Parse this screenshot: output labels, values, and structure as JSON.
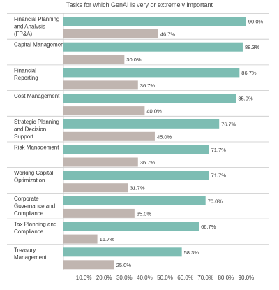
{
  "chart_data": {
    "type": "bar",
    "orientation": "horizontal",
    "title": "Tasks for which GenAI is very or extremely important",
    "categories": [
      "Financial Planning and Analysis (FP&A)",
      "Capital Management",
      "Financial Reporting",
      "Cost Management",
      "Strategic Planning and Decision Support",
      "Risk Management",
      "Working Capital Optimization",
      "Corporate Governance and Compliance",
      "Tax Planning and Compliance",
      "Treasury Management"
    ],
    "series": [
      {
        "color": "#7dbdb3",
        "values": [
          90.0,
          88.3,
          86.7,
          85.0,
          76.7,
          71.7,
          71.7,
          70.0,
          66.7,
          58.3
        ],
        "value_labels": [
          "90.0%",
          "88.3%",
          "86.7%",
          "85.0%",
          "76.7%",
          "71.7%",
          "71.7%",
          "70.0%",
          "66.7%",
          "58.3%"
        ]
      },
      {
        "color": "#c0b5b0",
        "values": [
          46.7,
          30.0,
          36.7,
          40.0,
          45.0,
          36.7,
          31.7,
          35.0,
          16.7,
          25.0
        ],
        "value_labels": [
          "46.7%",
          "30.0%",
          "36.7%",
          "40.0%",
          "45.0%",
          "36.7%",
          "31.7%",
          "35.0%",
          "16.7%",
          "25.0%"
        ]
      }
    ],
    "xlim": [
      0,
      100
    ],
    "x_ticks": [
      10,
      20,
      30,
      40,
      50,
      60,
      70,
      80,
      90
    ],
    "x_tick_labels": [
      "10.0%",
      "20.0%",
      "30.0%",
      "40.0%",
      "50.0%",
      "60.0%",
      "70.0%",
      "80.0%",
      "90.0%"
    ],
    "grid": false,
    "legend": "none"
  }
}
